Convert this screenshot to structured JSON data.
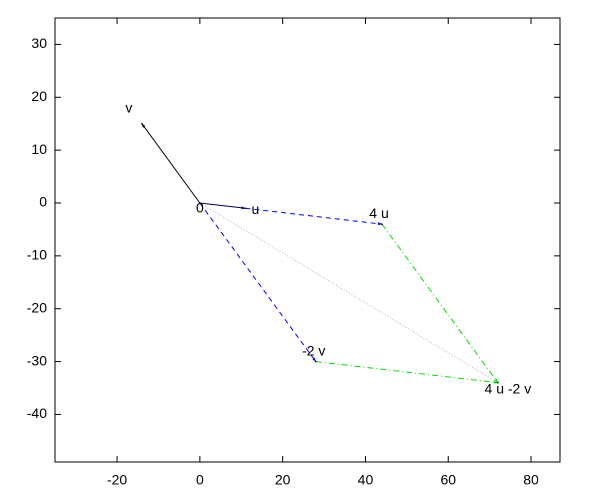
{
  "chart_data": {
    "type": "vector",
    "xlim": [
      -35,
      87
    ],
    "ylim": [
      -49,
      35
    ],
    "xticks": [
      -20,
      0,
      20,
      40,
      60,
      80
    ],
    "yticks": [
      30,
      20,
      10,
      0,
      -10,
      -20,
      -30,
      -40
    ],
    "grid": false,
    "segments": [
      {
        "x": [
          0,
          -14
        ],
        "y": [
          0,
          15
        ],
        "color": "#000000",
        "dash": "solid",
        "arrow": true
      },
      {
        "x": [
          0,
          11
        ],
        "y": [
          0,
          -1
        ],
        "color": "#000060",
        "dash": "solid",
        "arrow": true
      },
      {
        "x": [
          11,
          44
        ],
        "y": [
          -1,
          -4
        ],
        "color": "#0000ff",
        "dash": "dashed",
        "arrow": true
      },
      {
        "x": [
          0,
          28
        ],
        "y": [
          0,
          -30
        ],
        "color": "#0000ff",
        "dash": "dashed",
        "arrow": true
      },
      {
        "x": [
          44,
          72
        ],
        "y": [
          -4,
          -34
        ],
        "color": "#00dd00",
        "dash": "dashdot",
        "arrow": true
      },
      {
        "x": [
          28,
          72
        ],
        "y": [
          -30,
          -34
        ],
        "color": "#00dd00",
        "dash": "dashdot",
        "arrow": true
      },
      {
        "x": [
          0,
          72
        ],
        "y": [
          0,
          -34
        ],
        "color": "#d0a8a8",
        "dash": "dotted",
        "arrow": false
      }
    ],
    "labels": [
      {
        "text": "v",
        "x": -14,
        "y": 15
      },
      {
        "text": "0",
        "x": 0,
        "y": 0
      },
      {
        "text": "u",
        "x": 11,
        "y": -1
      },
      {
        "text": "4 u",
        "x": 44,
        "y": -4
      },
      {
        "text": "-2 v",
        "x": 28,
        "y": -30
      },
      {
        "text": "4 u -2 v",
        "x": 72,
        "y": -34
      }
    ]
  }
}
